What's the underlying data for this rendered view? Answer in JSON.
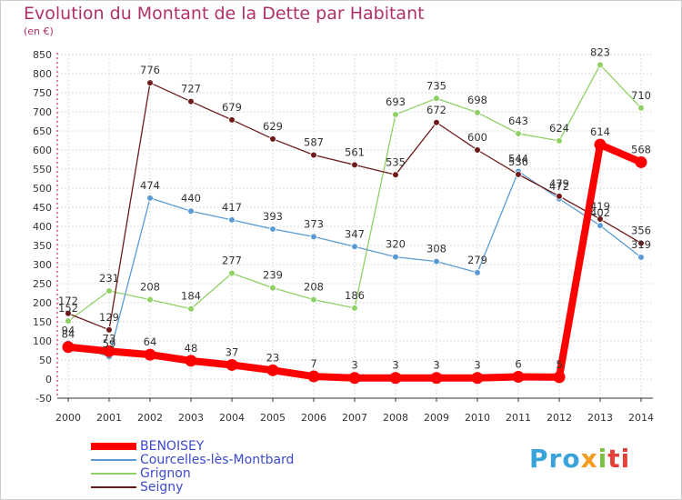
{
  "title": "Evolution du Montant de la Dette par Habitant",
  "subtitle": "(en €)",
  "logo": {
    "text_1": "Pro",
    "text_2": "x",
    "text_3": "i",
    "text_4": "ti"
  },
  "chart_data": {
    "type": "line",
    "title": "Evolution du Montant de la Dette par Habitant",
    "ylabel": "(en €)",
    "xlabel": "",
    "ylim": [
      -50,
      850
    ],
    "ytick_step": 50,
    "grid": true,
    "legend_position": "bottom-left",
    "categories": [
      "2000",
      "2001",
      "2002",
      "2003",
      "2004",
      "2005",
      "2006",
      "2007",
      "2008",
      "2009",
      "2010",
      "2011",
      "2012",
      "2013",
      "2014"
    ],
    "series": [
      {
        "name": "Grignon",
        "color": "#8fd164",
        "width": 1.3,
        "values": [
          152,
          231,
          208,
          184,
          277,
          239,
          208,
          186,
          693,
          735,
          698,
          643,
          624,
          823,
          710
        ]
      },
      {
        "name": "Courcelles-lès-Montbard",
        "color": "#5b9bd5",
        "width": 1.3,
        "values": [
          94,
          59,
          474,
          440,
          417,
          393,
          373,
          347,
          320,
          308,
          279,
          544,
          472,
          402,
          319
        ]
      },
      {
        "name": "Seigny",
        "color": "#6e1a1a",
        "width": 1.3,
        "values": [
          172,
          129,
          776,
          727,
          679,
          629,
          587,
          561,
          535,
          672,
          600,
          536,
          479,
          419,
          356
        ]
      },
      {
        "name": "BENOISEY",
        "color": "#ff0000",
        "width": 8,
        "values": [
          84,
          73,
          64,
          48,
          37,
          23,
          7,
          3,
          3,
          3,
          3,
          6,
          5,
          614,
          568
        ]
      }
    ],
    "legend_order": [
      "BENOISEY",
      "Courcelles-lès-Montbard",
      "Grignon",
      "Seigny"
    ]
  }
}
